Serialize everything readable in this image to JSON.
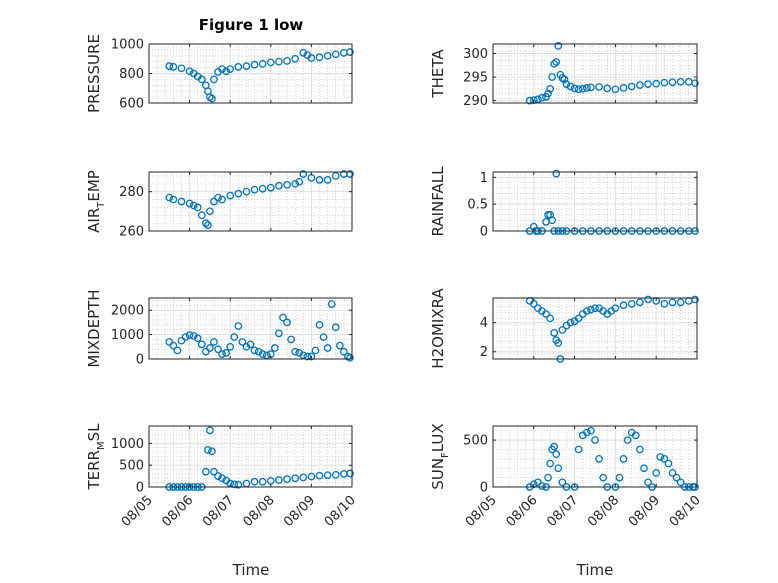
{
  "figure_title": "Figure 1 low",
  "xlabel_left": "Time",
  "xlabel_right": "Time",
  "colors": {
    "marker": "#0072BD",
    "axis": "#262626",
    "grid": "#dfdfdf",
    "minor_grid": "#bcbcbc"
  },
  "chart_data": [
    {
      "type": "scatter",
      "ylabel": "PRESSURE",
      "ylabel_parts": [
        "PRESSURE"
      ],
      "ylim": [
        600,
        1000
      ],
      "yticks": [
        600,
        800,
        1000
      ],
      "x": [
        0.5,
        0.6,
        0.8,
        1.0,
        1.1,
        1.2,
        1.3,
        1.4,
        1.45,
        1.5,
        1.55,
        1.6,
        1.7,
        1.8,
        1.9,
        2.0,
        2.2,
        2.4,
        2.6,
        2.8,
        3.0,
        3.2,
        3.4,
        3.6,
        3.8,
        3.9,
        4.0,
        4.2,
        4.4,
        4.6,
        4.8,
        4.95
      ],
      "y": [
        850,
        845,
        835,
        815,
        800,
        780,
        760,
        720,
        680,
        640,
        630,
        760,
        810,
        830,
        815,
        830,
        845,
        850,
        860,
        865,
        875,
        880,
        885,
        900,
        940,
        925,
        905,
        910,
        920,
        930,
        940,
        945
      ]
    },
    {
      "type": "scatter",
      "ylabel": "THETA",
      "ylabel_parts": [
        "THETA"
      ],
      "ylim": [
        289.5,
        302
      ],
      "yticks": [
        290,
        295,
        300
      ],
      "x": [
        0.9,
        1.0,
        1.1,
        1.2,
        1.3,
        1.35,
        1.4,
        1.45,
        1.5,
        1.55,
        1.6,
        1.65,
        1.7,
        1.75,
        1.8,
        1.9,
        2.0,
        2.1,
        2.2,
        2.3,
        2.4,
        2.6,
        2.8,
        3.0,
        3.2,
        3.4,
        3.6,
        3.8,
        4.0,
        4.2,
        4.4,
        4.6,
        4.8,
        4.95
      ],
      "y": [
        290,
        290.1,
        290.3,
        290.6,
        290.8,
        291.5,
        292.5,
        295,
        297.8,
        298.2,
        301.6,
        295.5,
        294.8,
        294.5,
        293.5,
        293,
        292.6,
        292.4,
        292.5,
        292.7,
        292.8,
        292.9,
        292.6,
        292.4,
        292.7,
        293,
        293.3,
        293.5,
        293.6,
        293.8,
        293.9,
        294,
        294,
        293.7
      ]
    },
    {
      "type": "scatter",
      "ylabel": "AIR_TEMP",
      "ylabel_parts": [
        "AIR",
        "T",
        "EMP"
      ],
      "ylim": [
        260,
        290
      ],
      "yticks": [
        260,
        280
      ],
      "x": [
        0.5,
        0.6,
        0.8,
        1.0,
        1.1,
        1.2,
        1.3,
        1.4,
        1.45,
        1.5,
        1.6,
        1.7,
        1.8,
        2.0,
        2.2,
        2.4,
        2.6,
        2.8,
        3.0,
        3.2,
        3.4,
        3.6,
        3.7,
        3.8,
        4.0,
        4.2,
        4.4,
        4.6,
        4.8,
        4.95
      ],
      "y": [
        277,
        276,
        275,
        274,
        273,
        272,
        268,
        264,
        263,
        270,
        275,
        277,
        276,
        278,
        279,
        280,
        281,
        281.5,
        282,
        283,
        283.5,
        284,
        285,
        289,
        287,
        286,
        286,
        288,
        289,
        289
      ]
    },
    {
      "type": "scatter",
      "ylabel": "RAINFALL",
      "ylabel_parts": [
        "RAINFALL"
      ],
      "ylim": [
        0,
        1.1
      ],
      "yticks": [
        0,
        0.5,
        1
      ],
      "x": [
        0.9,
        1.0,
        1.05,
        1.1,
        1.2,
        1.3,
        1.35,
        1.4,
        1.45,
        1.5,
        1.55,
        1.6,
        1.7,
        1.8,
        2.0,
        2.2,
        2.4,
        2.6,
        2.8,
        3.0,
        3.2,
        3.4,
        3.6,
        3.8,
        4.0,
        4.2,
        4.4,
        4.6,
        4.8,
        4.95
      ],
      "y": [
        0,
        0.08,
        0,
        0,
        0,
        0.17,
        0.3,
        0.3,
        0.2,
        0,
        1.07,
        0,
        0,
        0,
        0,
        0,
        0,
        0,
        0,
        0,
        0,
        0,
        0,
        0,
        0,
        0,
        0,
        0,
        0,
        0
      ]
    },
    {
      "type": "scatter",
      "ylabel": "MIXDEPTH",
      "ylabel_parts": [
        "MIXDEPTH"
      ],
      "ylim": [
        0,
        2500
      ],
      "yticks": [
        0,
        1000,
        2000
      ],
      "x": [
        0.5,
        0.6,
        0.7,
        0.8,
        0.9,
        1.0,
        1.1,
        1.2,
        1.3,
        1.4,
        1.5,
        1.6,
        1.7,
        1.8,
        1.9,
        2.0,
        2.1,
        2.2,
        2.3,
        2.4,
        2.5,
        2.6,
        2.7,
        2.8,
        2.9,
        3.0,
        3.1,
        3.2,
        3.3,
        3.4,
        3.5,
        3.6,
        3.7,
        3.8,
        3.9,
        4.0,
        4.1,
        4.2,
        4.3,
        4.4,
        4.5,
        4.6,
        4.7,
        4.8,
        4.9,
        4.95
      ],
      "y": [
        700,
        550,
        350,
        750,
        900,
        980,
        950,
        850,
        600,
        300,
        450,
        700,
        400,
        200,
        250,
        500,
        900,
        1350,
        700,
        500,
        600,
        350,
        300,
        200,
        150,
        200,
        450,
        1050,
        1700,
        1500,
        800,
        300,
        250,
        150,
        100,
        100,
        350,
        1400,
        900,
        450,
        2250,
        1300,
        550,
        300,
        100,
        50
      ]
    },
    {
      "type": "scatter",
      "ylabel": "H2OMIXRA",
      "ylabel_parts": [
        "H2OMIXRA"
      ],
      "ylim": [
        1.5,
        5.7
      ],
      "yticks": [
        2,
        4
      ],
      "x": [
        0.9,
        1.0,
        1.1,
        1.2,
        1.3,
        1.4,
        1.5,
        1.55,
        1.6,
        1.65,
        1.7,
        1.8,
        1.9,
        2.0,
        2.1,
        2.2,
        2.3,
        2.4,
        2.5,
        2.6,
        2.7,
        2.8,
        2.9,
        3.0,
        3.2,
        3.4,
        3.6,
        3.8,
        4.0,
        4.2,
        4.4,
        4.6,
        4.8,
        4.95
      ],
      "y": [
        5.5,
        5.3,
        5.0,
        4.8,
        4.6,
        4.3,
        3.3,
        2.8,
        2.6,
        1.5,
        3.5,
        3.8,
        4.0,
        4.1,
        4.3,
        4.6,
        4.8,
        4.9,
        5.0,
        5.0,
        4.8,
        4.6,
        4.8,
        5.0,
        5.2,
        5.3,
        5.4,
        5.6,
        5.5,
        5.3,
        5.4,
        5.4,
        5.5,
        5.6
      ]
    },
    {
      "type": "scatter",
      "ylabel": "TERR_MSL",
      "ylabel_parts": [
        "TERR",
        "M",
        "SL"
      ],
      "ylim": [
        0,
        1400
      ],
      "yticks": [
        0,
        500,
        1000
      ],
      "x": [
        0.5,
        0.6,
        0.7,
        0.8,
        0.9,
        1.0,
        1.1,
        1.2,
        1.3,
        1.4,
        1.45,
        1.5,
        1.55,
        1.6,
        1.7,
        1.8,
        1.9,
        2.0,
        2.1,
        2.2,
        2.4,
        2.6,
        2.8,
        3.0,
        3.2,
        3.4,
        3.6,
        3.8,
        4.0,
        4.2,
        4.4,
        4.6,
        4.8,
        4.95
      ],
      "y": [
        0,
        0,
        0,
        0,
        0,
        0,
        0,
        0,
        0,
        350,
        850,
        1300,
        820,
        350,
        250,
        200,
        150,
        80,
        60,
        50,
        80,
        120,
        120,
        140,
        160,
        180,
        200,
        220,
        240,
        260,
        270,
        280,
        300,
        310
      ]
    },
    {
      "type": "scatter",
      "ylabel": "SUN_FLUX",
      "ylabel_parts": [
        "SUN",
        "F",
        "LUX"
      ],
      "ylim": [
        0,
        650
      ],
      "yticks": [
        0,
        500
      ],
      "x": [
        0.9,
        1.0,
        1.1,
        1.2,
        1.3,
        1.35,
        1.4,
        1.45,
        1.5,
        1.55,
        1.6,
        1.7,
        1.8,
        2.0,
        2.1,
        2.2,
        2.3,
        2.4,
        2.5,
        2.6,
        2.7,
        2.8,
        3.0,
        3.1,
        3.2,
        3.3,
        3.4,
        3.5,
        3.6,
        3.7,
        3.8,
        3.9,
        4.0,
        4.1,
        4.2,
        4.3,
        4.4,
        4.5,
        4.6,
        4.7,
        4.8,
        4.9,
        4.95
      ],
      "y": [
        0,
        30,
        50,
        10,
        0,
        100,
        250,
        400,
        430,
        350,
        200,
        50,
        0,
        0,
        400,
        550,
        580,
        600,
        500,
        300,
        100,
        0,
        0,
        100,
        300,
        500,
        580,
        550,
        400,
        200,
        50,
        0,
        150,
        320,
        300,
        250,
        150,
        100,
        50,
        0,
        0,
        0,
        0
      ]
    }
  ],
  "shared_x": {
    "xlim": [
      0,
      5
    ],
    "xticks": [
      0,
      1,
      2,
      3,
      4,
      5
    ],
    "xticklabels": [
      "08/05",
      "08/06",
      "08/07",
      "08/08",
      "08/09",
      "08/10"
    ]
  }
}
